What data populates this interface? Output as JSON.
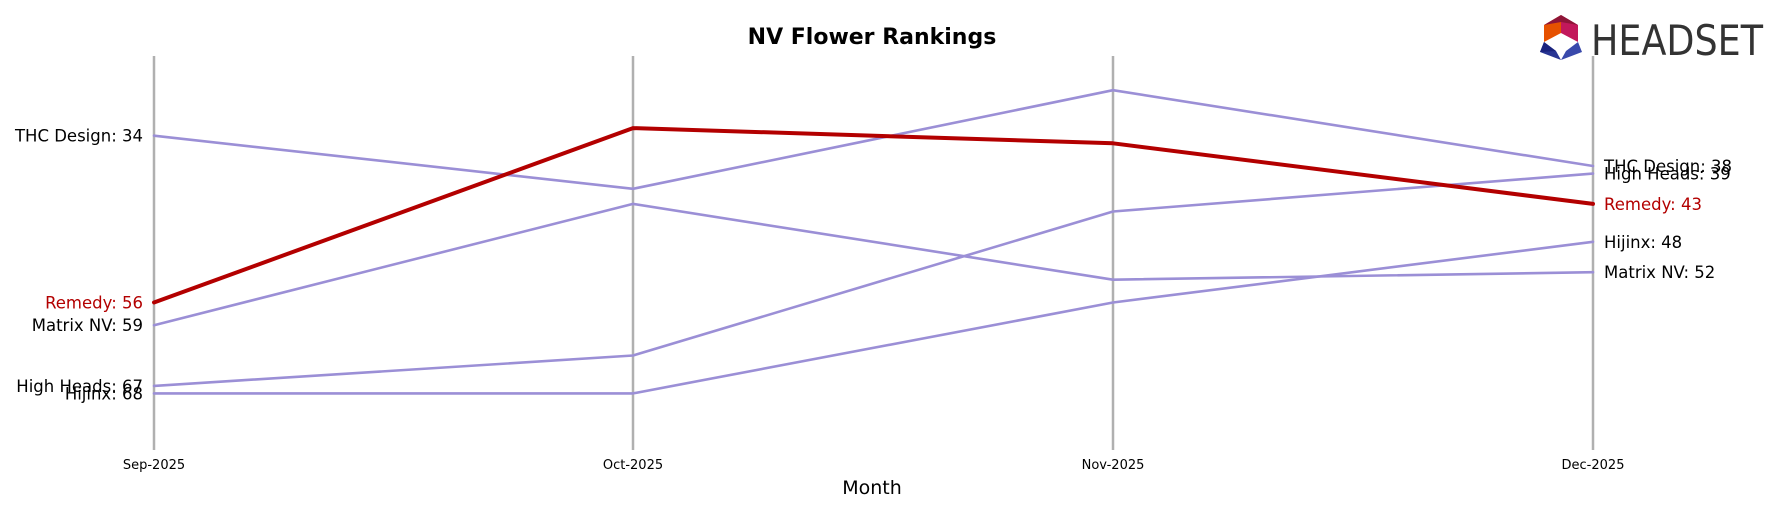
{
  "logo": {
    "text": "HEADSET"
  },
  "chart_data": {
    "type": "line",
    "title": "NV Flower Rankings",
    "xlabel": "Month",
    "ylabel": "",
    "x": [
      "Sep-2025",
      "Oct-2025",
      "Nov-2025",
      "Dec-2025"
    ],
    "y_inverted": true,
    "grid": "vertical lines at each month",
    "highlight_color": "#b30000",
    "other_color": "#9b8fd6",
    "gridline_color": "#b0b0b0",
    "series": [
      {
        "name": "THC Design",
        "values": [
          34,
          41,
          28,
          38
        ],
        "highlight": false,
        "start_label": "THC Design: 34",
        "end_label": "THC Design: 38"
      },
      {
        "name": "High Heads",
        "values": [
          67,
          63,
          44,
          39
        ],
        "highlight": false,
        "start_label": "High Heads: 67",
        "end_label": "High Heads: 39"
      },
      {
        "name": "Remedy",
        "values": [
          56,
          33,
          35,
          43
        ],
        "highlight": true,
        "start_label": "Remedy: 56",
        "end_label": "Remedy: 43"
      },
      {
        "name": "Hijinx",
        "values": [
          68,
          68,
          56,
          48
        ],
        "highlight": false,
        "start_label": "Hijinx: 68",
        "end_label": "Hijinx: 48"
      },
      {
        "name": "Matrix NV",
        "values": [
          59,
          43,
          53,
          52
        ],
        "highlight": false,
        "start_label": "Matrix NV: 59",
        "end_label": "Matrix NV: 52"
      }
    ]
  }
}
